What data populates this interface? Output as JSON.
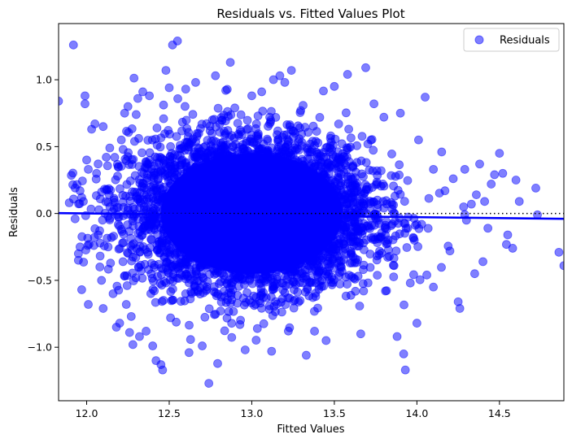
{
  "chart_data": {
    "type": "scatter",
    "title": "Residuals vs. Fitted Values Plot",
    "xlabel": "Fitted Values",
    "ylabel": "Residuals",
    "xlim": [
      11.83,
      14.89
    ],
    "ylim": [
      -1.4,
      1.42
    ],
    "x_ticks": [
      12.0,
      12.5,
      13.0,
      13.5,
      14.0,
      14.5
    ],
    "x_tick_labels": [
      "12.0",
      "12.5",
      "13.0",
      "13.5",
      "14.0",
      "14.5"
    ],
    "y_ticks": [
      -1.0,
      -0.5,
      0.0,
      0.5,
      1.0
    ],
    "y_tick_labels": [
      "−1.0",
      "−0.5",
      "0.0",
      "0.5",
      "1.0"
    ],
    "grid": false,
    "legend": {
      "position": "top-right",
      "entries": [
        "Residuals"
      ]
    },
    "series": [
      {
        "name": "Residuals",
        "color": "#0000ff",
        "opacity": 0.5,
        "points": [
          [
            11.83,
            0.84
          ],
          [
            11.92,
            1.26
          ],
          [
            11.93,
            -0.04
          ],
          [
            11.96,
            0.17
          ],
          [
            11.97,
            0.12
          ],
          [
            11.98,
            0.09
          ],
          [
            11.96,
            -0.25
          ],
          [
            11.95,
            -0.3
          ],
          [
            11.95,
            -0.35
          ],
          [
            11.97,
            -0.57
          ],
          [
            11.99,
            0.82
          ],
          [
            11.99,
            0.88
          ],
          [
            12.0,
            0.4
          ],
          [
            12.01,
            0.33
          ],
          [
            12.01,
            -0.68
          ],
          [
            12.03,
            0.63
          ],
          [
            12.05,
            0.67
          ],
          [
            12.06,
            0.3
          ],
          [
            12.07,
            -0.16
          ],
          [
            12.08,
            -0.4
          ],
          [
            12.09,
            -0.5
          ],
          [
            12.1,
            -0.71
          ],
          [
            12.1,
            0.65
          ],
          [
            12.12,
            0.18
          ],
          [
            12.13,
            -0.25
          ],
          [
            12.14,
            0.49
          ],
          [
            12.15,
            -0.18
          ],
          [
            12.16,
            -0.6
          ],
          [
            12.17,
            0.42
          ],
          [
            12.18,
            -0.85
          ],
          [
            12.19,
            0.35
          ],
          [
            12.2,
            -0.82
          ],
          [
            12.21,
            0.55
          ],
          [
            12.22,
            -0.36
          ],
          [
            12.23,
            0.75
          ],
          [
            12.24,
            -0.68
          ],
          [
            12.25,
            0.8
          ],
          [
            12.26,
            -0.89
          ],
          [
            12.27,
            -0.77
          ],
          [
            12.28,
            -0.98
          ],
          [
            12.3,
            0.74
          ],
          [
            12.31,
            0.86
          ],
          [
            12.32,
            -0.92
          ],
          [
            12.34,
            0.91
          ],
          [
            12.36,
            -0.88
          ],
          [
            12.38,
            0.88
          ],
          [
            12.4,
            -0.99
          ],
          [
            12.42,
            -1.1
          ],
          [
            12.45,
            -1.13
          ],
          [
            12.46,
            -1.17
          ],
          [
            12.48,
            1.07
          ],
          [
            12.5,
            0.94
          ],
          [
            12.52,
            1.26
          ],
          [
            12.55,
            1.29
          ],
          [
            12.6,
            0.93
          ],
          [
            12.62,
            -1.04
          ],
          [
            12.66,
            0.98
          ],
          [
            12.7,
            -0.99
          ],
          [
            12.74,
            -1.27
          ],
          [
            12.78,
            1.03
          ],
          [
            12.87,
            1.13
          ],
          [
            12.96,
            -1.02
          ],
          [
            13.0,
            0.88
          ],
          [
            13.06,
            0.91
          ],
          [
            13.12,
            -1.03
          ],
          [
            13.17,
            1.03
          ],
          [
            13.2,
            0.98
          ],
          [
            13.24,
            1.07
          ],
          [
            13.33,
            -1.06
          ],
          [
            13.38,
            -0.88
          ],
          [
            13.45,
            -0.95
          ],
          [
            13.5,
            0.95
          ],
          [
            13.58,
            1.04
          ],
          [
            13.66,
            -0.9
          ],
          [
            13.69,
            1.09
          ],
          [
            13.74,
            0.82
          ],
          [
            13.8,
            0.72
          ],
          [
            13.88,
            -0.92
          ],
          [
            13.9,
            0.75
          ],
          [
            13.92,
            -1.05
          ],
          [
            13.93,
            -1.17
          ],
          [
            13.96,
            -0.52
          ],
          [
            14.0,
            -0.82
          ],
          [
            14.01,
            0.55
          ],
          [
            14.05,
            0.87
          ],
          [
            14.06,
            -0.46
          ],
          [
            14.1,
            -0.55
          ],
          [
            14.1,
            0.33
          ],
          [
            14.15,
            0.46
          ],
          [
            14.17,
            0.17
          ],
          [
            14.2,
            -0.28
          ],
          [
            14.22,
            0.26
          ],
          [
            14.25,
            -0.66
          ],
          [
            14.26,
            -0.71
          ],
          [
            14.29,
            0.33
          ],
          [
            14.3,
            -0.05
          ],
          [
            14.33,
            0.07
          ],
          [
            14.35,
            -0.45
          ],
          [
            14.38,
            0.37
          ],
          [
            14.4,
            -0.36
          ],
          [
            14.41,
            0.09
          ],
          [
            14.45,
            0.22
          ],
          [
            14.5,
            0.45
          ],
          [
            14.52,
            0.3
          ],
          [
            14.55,
            -0.16
          ],
          [
            14.58,
            -0.26
          ],
          [
            14.6,
            0.25
          ],
          [
            14.62,
            0.09
          ],
          [
            14.72,
            0.19
          ],
          [
            14.73,
            -0.01
          ],
          [
            14.86,
            -0.29
          ],
          [
            14.89,
            -0.39
          ],
          [
            14.47,
            0.29
          ],
          [
            14.43,
            -0.11
          ],
          [
            14.36,
            0.14
          ]
        ]
      }
    ],
    "trend_line": {
      "color": "#0000ff",
      "from": [
        11.83,
        0.003
      ],
      "to": [
        14.89,
        -0.04
      ]
    },
    "reference_line": {
      "y": 0.0,
      "style": "dotted",
      "color": "#000000"
    }
  }
}
